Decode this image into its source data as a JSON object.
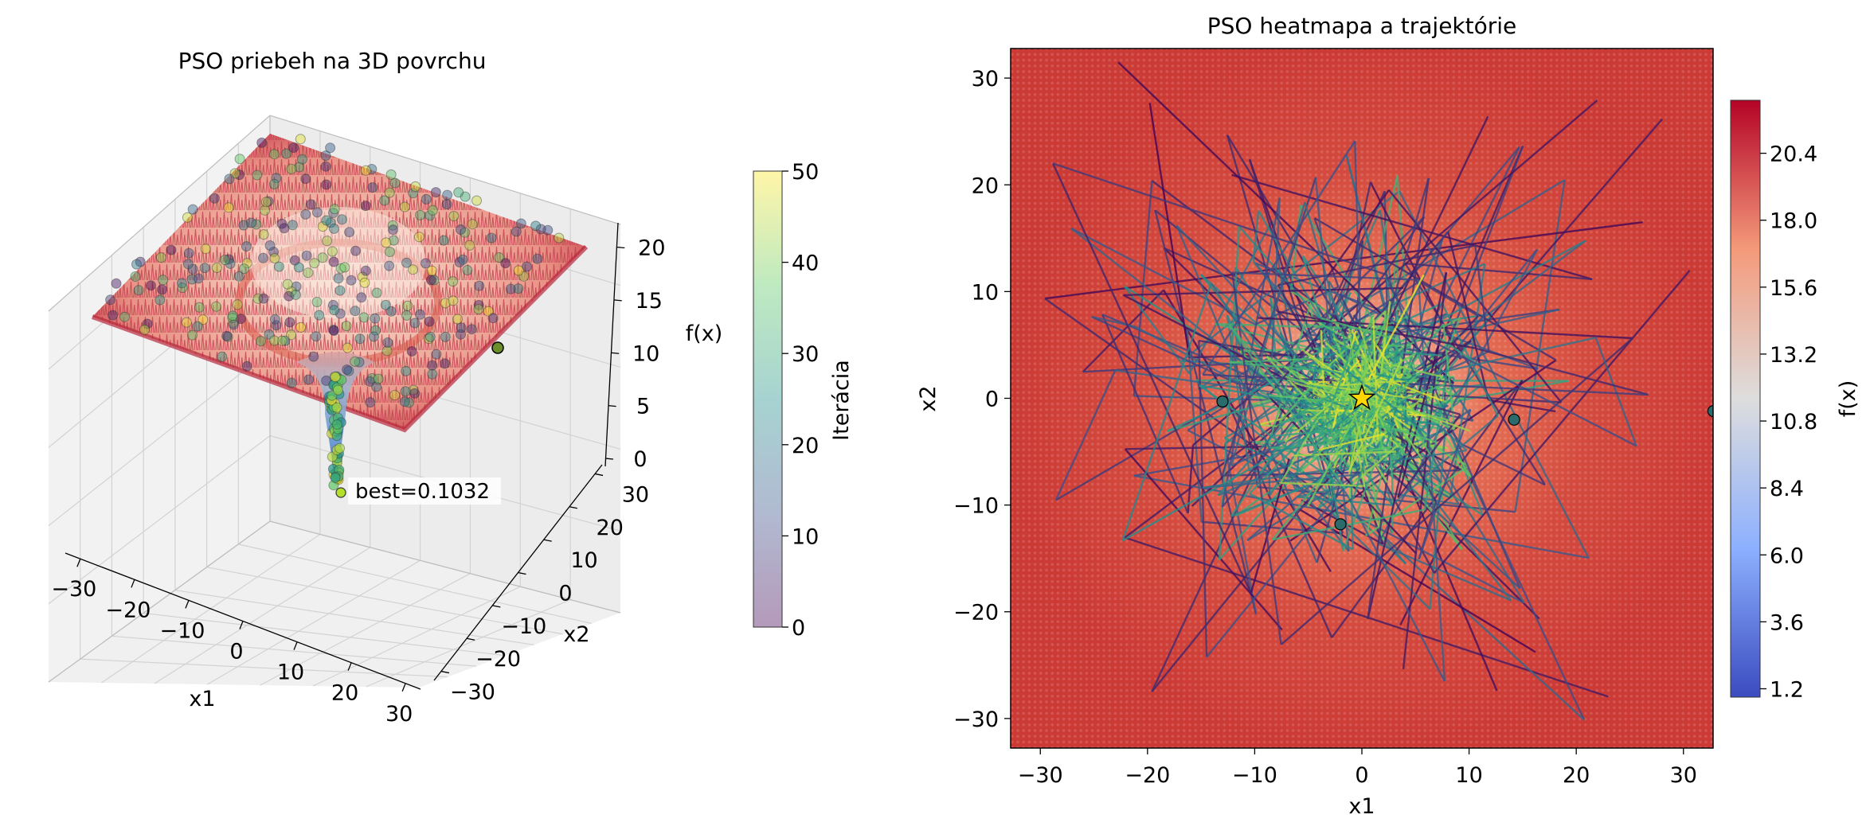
{
  "chart_data": [
    {
      "type": "scatter",
      "subtype": "3d-surface",
      "title": "PSO priebeh na 3D povrchu",
      "xlabel": "x1",
      "ylabel": "x2",
      "zlabel": "f(x)",
      "x_ticks": [
        "−30",
        "−20",
        "−10",
        "0",
        "10",
        "20",
        "30"
      ],
      "y_ticks": [
        "−30",
        "−20",
        "−10",
        "0",
        "10",
        "20",
        "30"
      ],
      "z_ticks": [
        "0",
        "5",
        "10",
        "15",
        "20"
      ],
      "xlim": [
        -32.768,
        32.768
      ],
      "ylim": [
        -32.768,
        32.768
      ],
      "zlim": [
        0,
        22.3
      ],
      "surface_colormap": "coolwarm",
      "best_annotation": "best=0.1032",
      "best_value": 0.1032,
      "best_position": [
        0,
        0
      ],
      "colorbar": {
        "label": "Iterácia",
        "ticks": [
          "0",
          "10",
          "20",
          "30",
          "40",
          "50"
        ],
        "range": [
          0,
          50
        ],
        "colormap": "viridis",
        "alpha": 0.4
      },
      "grid": true
    },
    {
      "type": "heatmap",
      "title": "PSO heatmapa a trajektórie",
      "xlabel": "x1",
      "ylabel": "x2",
      "x_ticks": [
        "−30",
        "−20",
        "−10",
        "0",
        "10",
        "20",
        "30"
      ],
      "y_ticks": [
        "−30",
        "−20",
        "−10",
        "0",
        "10",
        "20",
        "30"
      ],
      "xlim": [
        -32.768,
        32.768
      ],
      "ylim": [
        -32.768,
        32.768
      ],
      "colormap": "coolwarm",
      "trajectory_colormap": "viridis",
      "best_marker": "star",
      "best_position": [
        0,
        0
      ],
      "final_particles": [
        [
          -13,
          -0.3
        ],
        [
          14.2,
          -2
        ],
        [
          -2,
          -11.8
        ],
        [
          32.8,
          -1.2
        ]
      ],
      "colorbar": {
        "label": "f(x)",
        "ticks": [
          "1.2",
          "3.6",
          "6.0",
          "8.4",
          "10.8",
          "13.2",
          "15.6",
          "18.0",
          "20.4"
        ],
        "range": [
          0.9,
          22.3
        ]
      }
    }
  ]
}
